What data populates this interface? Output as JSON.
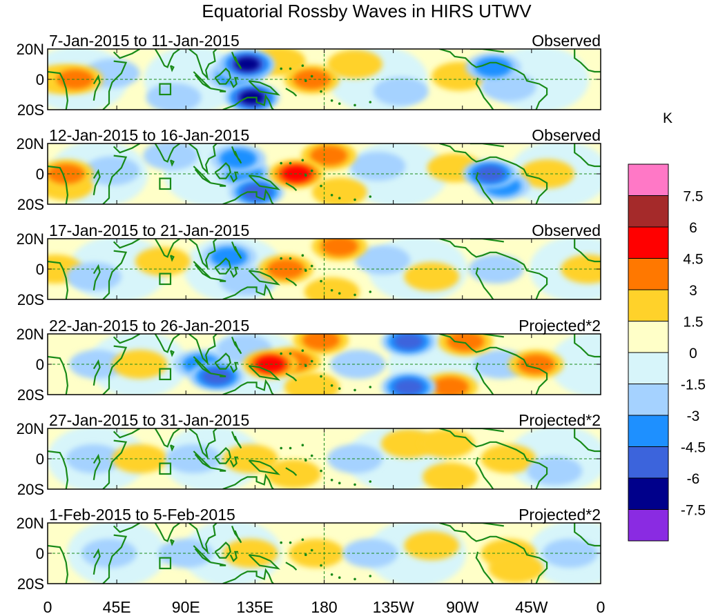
{
  "title": "Equatorial Rossby Waves in HIRS UTWV",
  "panels": [
    {
      "date_range": "7-Jan-2015 to 11-Jan-2015",
      "kind": "Observed",
      "anomalies": [
        {
          "lon": 18,
          "lat": 0,
          "value": 3
        },
        {
          "lon": 8,
          "lat": 0,
          "value": 1.5
        },
        {
          "lon": 42,
          "lat": 4,
          "value": -1.5
        },
        {
          "lon": 82,
          "lat": -12,
          "value": -1.5
        },
        {
          "lon": 122,
          "lat": 2,
          "value": -3
        },
        {
          "lon": 128,
          "lat": 8,
          "value": -4.5
        },
        {
          "lon": 130,
          "lat": 10,
          "value": -6
        },
        {
          "lon": 133,
          "lat": -12,
          "value": -6
        },
        {
          "lon": 150,
          "lat": 12,
          "value": 1.5
        },
        {
          "lon": 172,
          "lat": 0,
          "value": 3
        },
        {
          "lon": 200,
          "lat": 10,
          "value": 1.5
        },
        {
          "lon": 230,
          "lat": -8,
          "value": -1.5
        },
        {
          "lon": 268,
          "lat": 2,
          "value": 1.5
        },
        {
          "lon": 290,
          "lat": 8,
          "value": -3
        },
        {
          "lon": 300,
          "lat": -5,
          "value": -1.5
        }
      ]
    },
    {
      "date_range": "12-Jan-2015 to 16-Jan-2015",
      "kind": "Observed",
      "anomalies": [
        {
          "lon": 12,
          "lat": 0,
          "value": 3
        },
        {
          "lon": 12,
          "lat": -8,
          "value": 1.5
        },
        {
          "lon": 42,
          "lat": 2,
          "value": -1.5
        },
        {
          "lon": 80,
          "lat": 12,
          "value": -1.5
        },
        {
          "lon": 128,
          "lat": 0,
          "value": -3
        },
        {
          "lon": 136,
          "lat": -12,
          "value": -4.5
        },
        {
          "lon": 124,
          "lat": 10,
          "value": -3
        },
        {
          "lon": 162,
          "lat": 0,
          "value": 4.5
        },
        {
          "lon": 183,
          "lat": 12,
          "value": 3
        },
        {
          "lon": 190,
          "lat": -12,
          "value": 1.5
        },
        {
          "lon": 215,
          "lat": 5,
          "value": -1.5
        },
        {
          "lon": 265,
          "lat": 4,
          "value": 1.5
        },
        {
          "lon": 288,
          "lat": 0,
          "value": -4.5
        },
        {
          "lon": 296,
          "lat": -8,
          "value": -3
        },
        {
          "lon": 325,
          "lat": 0,
          "value": 1.5
        }
      ]
    },
    {
      "date_range": "17-Jan-2015 to 21-Jan-2015",
      "kind": "Observed",
      "anomalies": [
        {
          "lon": 5,
          "lat": 0,
          "value": 1.5
        },
        {
          "lon": 30,
          "lat": -5,
          "value": -1.5
        },
        {
          "lon": 75,
          "lat": 5,
          "value": 1.5
        },
        {
          "lon": 118,
          "lat": 8,
          "value": -3
        },
        {
          "lon": 130,
          "lat": -8,
          "value": -1.5
        },
        {
          "lon": 155,
          "lat": 0,
          "value": 3
        },
        {
          "lon": 190,
          "lat": 15,
          "value": 3
        },
        {
          "lon": 185,
          "lat": -15,
          "value": 1.5
        },
        {
          "lon": 218,
          "lat": 6,
          "value": -1.5
        },
        {
          "lon": 250,
          "lat": -5,
          "value": 1.5
        },
        {
          "lon": 292,
          "lat": 0,
          "value": -1.5
        },
        {
          "lon": 352,
          "lat": 0,
          "value": 1.5
        }
      ]
    },
    {
      "date_range": "22-Jan-2015 to 26-Jan-2015",
      "kind": "Projected*2",
      "anomalies": [
        {
          "lon": 32,
          "lat": 0,
          "value": -1.5
        },
        {
          "lon": 60,
          "lat": 0,
          "value": 1.5
        },
        {
          "lon": 100,
          "lat": 0,
          "value": -3
        },
        {
          "lon": 110,
          "lat": -8,
          "value": -4.5
        },
        {
          "lon": 128,
          "lat": 10,
          "value": -1.5
        },
        {
          "lon": 145,
          "lat": 0,
          "value": 4.5
        },
        {
          "lon": 160,
          "lat": 2,
          "value": 3
        },
        {
          "lon": 178,
          "lat": 16,
          "value": 3
        },
        {
          "lon": 172,
          "lat": -15,
          "value": 1.5
        },
        {
          "lon": 202,
          "lat": 0,
          "value": -1.5
        },
        {
          "lon": 235,
          "lat": 15,
          "value": -4.5
        },
        {
          "lon": 235,
          "lat": -15,
          "value": -4.5
        },
        {
          "lon": 262,
          "lat": -15,
          "value": 3
        },
        {
          "lon": 272,
          "lat": 15,
          "value": 3
        },
        {
          "lon": 295,
          "lat": 0,
          "value": -1.5
        },
        {
          "lon": 318,
          "lat": 0,
          "value": 3
        }
      ]
    },
    {
      "date_range": "27-Jan-2015 to 31-Jan-2015",
      "kind": "Projected*2",
      "anomalies": [
        {
          "lon": 30,
          "lat": 0,
          "value": -1.5
        },
        {
          "lon": 60,
          "lat": 0,
          "value": 1.5
        },
        {
          "lon": 95,
          "lat": 0,
          "value": -1.5
        },
        {
          "lon": 132,
          "lat": 0,
          "value": 1.5
        },
        {
          "lon": 160,
          "lat": -10,
          "value": 1.5
        },
        {
          "lon": 200,
          "lat": 0,
          "value": -1.5
        },
        {
          "lon": 235,
          "lat": 10,
          "value": 1.5
        },
        {
          "lon": 260,
          "lat": 10,
          "value": 1.5
        },
        {
          "lon": 262,
          "lat": -12,
          "value": 1.5
        },
        {
          "lon": 300,
          "lat": 0,
          "value": 1.5
        },
        {
          "lon": 330,
          "lat": -8,
          "value": -1.5
        }
      ]
    },
    {
      "date_range": "1-Feb-2015 to 5-Feb-2015",
      "kind": "Projected*2",
      "anomalies": [
        {
          "lon": 40,
          "lat": 0,
          "value": -1.5
        },
        {
          "lon": 90,
          "lat": 0,
          "value": -1.5
        },
        {
          "lon": 132,
          "lat": 0,
          "value": 1.5
        },
        {
          "lon": 175,
          "lat": 0,
          "value": 1.5
        },
        {
          "lon": 210,
          "lat": 0,
          "value": -1.5
        },
        {
          "lon": 250,
          "lat": 5,
          "value": 1.5
        },
        {
          "lon": 300,
          "lat": 0,
          "value": 1.5
        },
        {
          "lon": 305,
          "lat": -10,
          "value": 1.5
        },
        {
          "lon": 340,
          "lat": 0,
          "value": -1.5
        }
      ]
    }
  ],
  "y_ticks": [
    "20N",
    "0",
    "20S"
  ],
  "x_ticks": [
    "0",
    "45E",
    "90E",
    "135E",
    "180",
    "135W",
    "90W",
    "45W",
    "0"
  ],
  "lat_range": [
    -20,
    20
  ],
  "lon_range": [
    0,
    360
  ],
  "colorbar": {
    "unit": "K",
    "labels": [
      "7.5",
      "6",
      "4.5",
      "3",
      "1.5",
      "0",
      "-1.5",
      "-3",
      "-4.5",
      "-6",
      "-7.5"
    ],
    "levels": [
      7.5,
      6,
      4.5,
      3,
      1.5,
      0,
      -1.5,
      -3,
      -4.5,
      -6,
      -7.5
    ],
    "colors": [
      "#ff78c6",
      "#a52a2a",
      "#ff0000",
      "#ff7800",
      "#ffd22a",
      "#ffffc8",
      "#d7f5fa",
      "#a5d2ff",
      "#1e90ff",
      "#3c64dc",
      "#00008b",
      "#8a2be2"
    ]
  },
  "style": {
    "coast": "#188a18",
    "grid": "#188a18"
  }
}
